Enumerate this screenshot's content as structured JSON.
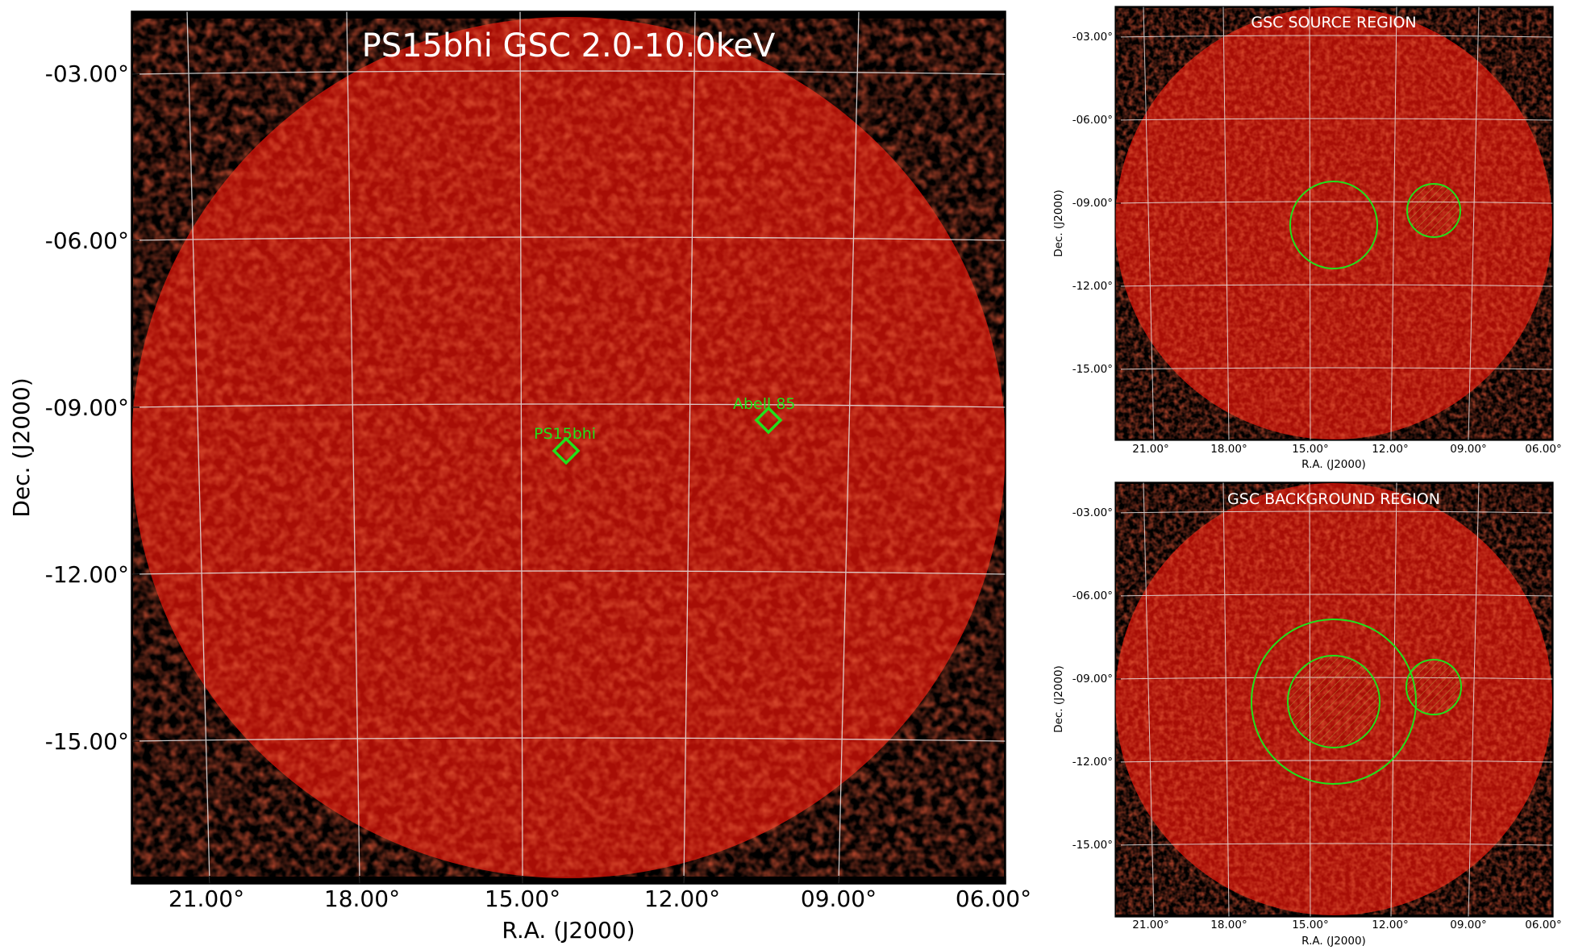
{
  "main_panel": {
    "title": "PS15bhi GSC 2.0-10.0keV",
    "xlabel": "R.A. (J2000)",
    "ylabel": "Dec. (J2000)",
    "ra_ticks": [
      "21.00°",
      "18.00°",
      "15.00°",
      "12.00°",
      "09.00°",
      "06.00°"
    ],
    "dec_ticks": [
      "-03.00°",
      "-06.00°",
      "-09.00°",
      "-12.00°",
      "-15.00°"
    ],
    "markers": [
      {
        "name": "PS15bhi",
        "label": "PS15bhi"
      },
      {
        "name": "Abell 85",
        "label": "Abell 85"
      }
    ],
    "colors": {
      "marker": "#22e01a",
      "grid": "#e6e6e6",
      "field": "#b01008",
      "background": "#000000"
    }
  },
  "source_panel": {
    "title": "GSC SOURCE REGION",
    "xlabel": "R.A. (J2000)",
    "ylabel": "Dec. (J2000)",
    "ra_ticks": [
      "21.00°",
      "18.00°",
      "15.00°",
      "12.00°",
      "09.00°",
      "06.00°"
    ],
    "dec_ticks": [
      "-03.00°",
      "-06.00°",
      "-09.00°",
      "-12.00°",
      "-15.00°"
    ]
  },
  "background_panel": {
    "title": "GSC BACKGROUND REGION",
    "xlabel": "R.A. (J2000)",
    "ylabel": "Dec. (J2000)",
    "ra_ticks": [
      "21.00°",
      "18.00°",
      "15.00°",
      "12.00°",
      "09.00°",
      "06.00°"
    ],
    "dec_ticks": [
      "-03.00°",
      "-06.00°",
      "-09.00°",
      "-12.00°",
      "-15.00°"
    ]
  }
}
